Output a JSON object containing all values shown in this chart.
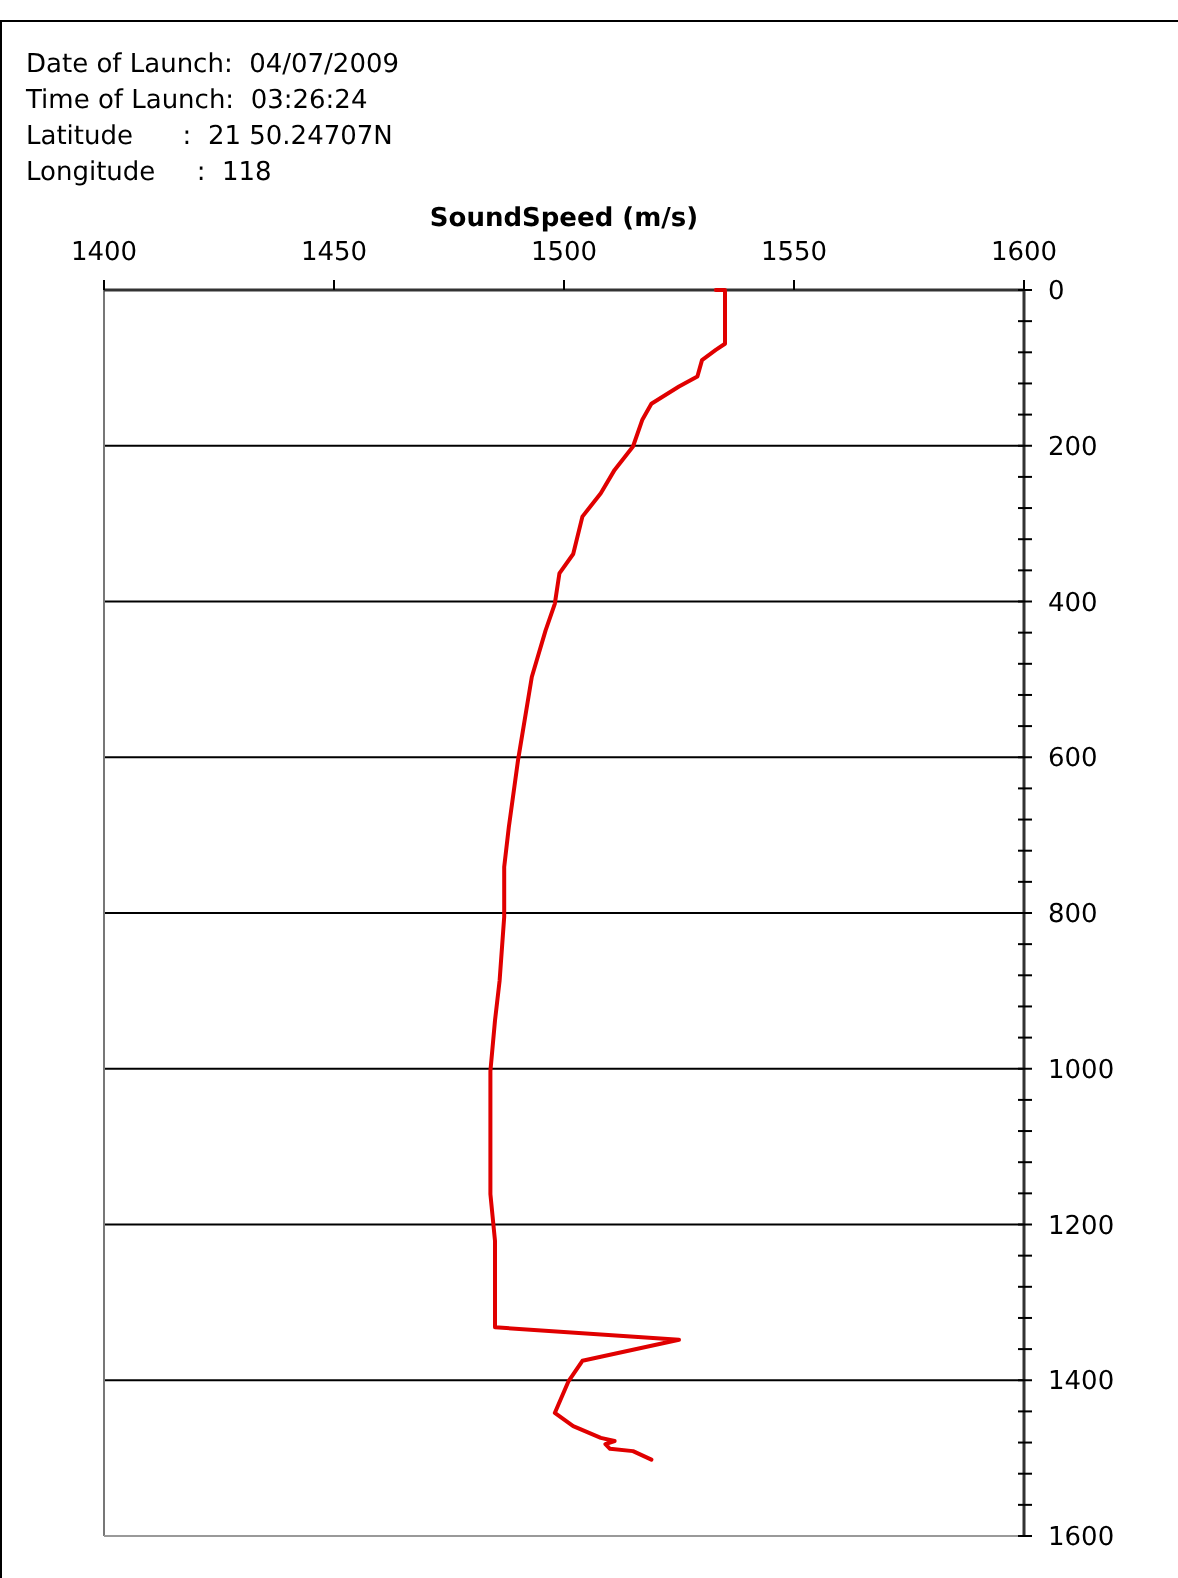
{
  "chart_data": {
    "type": "line",
    "annotations": [
      "Date of Launch:  04/07/2009",
      "Time of Launch:  03:26:24",
      "Latitude      :  21 50.24707N",
      "Longitude     :  118"
    ],
    "xlabel": "SoundSpeed (m/s)",
    "xlim": [
      1400,
      1600
    ],
    "xticks": [
      1400,
      1450,
      1500,
      1550,
      1600
    ],
    "ylim": [
      1600,
      0
    ],
    "yticks": [
      0,
      {
        "value": 40,
        "label": null
      },
      {
        "value": 80,
        "label": null
      },
      {
        "value": 120,
        "label": null
      },
      {
        "value": 160,
        "label": null
      },
      200,
      {
        "value": 240,
        "label": null
      },
      {
        "value": 280,
        "label": null
      },
      {
        "value": 320,
        "label": null
      },
      {
        "value": 360,
        "label": null
      },
      400,
      {
        "value": 440,
        "label": null
      },
      {
        "value": 480,
        "label": null
      },
      {
        "value": 520,
        "label": null
      },
      {
        "value": 560,
        "label": null
      },
      600,
      {
        "value": 640,
        "label": null
      },
      {
        "value": 680,
        "label": null
      },
      {
        "value": 720,
        "label": null
      },
      {
        "value": 760,
        "label": null
      },
      800,
      {
        "value": 840,
        "label": null
      },
      {
        "value": 880,
        "label": null
      },
      {
        "value": 920,
        "label": null
      },
      {
        "value": 960,
        "label": null
      },
      1000,
      {
        "value": 1040,
        "label": null
      },
      {
        "value": 1080,
        "label": null
      },
      {
        "value": 1120,
        "label": null
      },
      {
        "value": 1160,
        "label": null
      },
      1200,
      {
        "value": 1240,
        "label": null
      },
      {
        "value": 1280,
        "label": null
      },
      {
        "value": 1320,
        "label": null
      },
      {
        "value": 1360,
        "label": null
      },
      1400,
      {
        "value": 1440,
        "label": null
      },
      {
        "value": 1480,
        "label": null
      },
      {
        "value": 1520,
        "label": null
      },
      {
        "value": 1560,
        "label": null
      },
      1600
    ],
    "grid": "y",
    "line_style": "solid",
    "marker": "none",
    "series": [
      {
        "color": "#e00000",
        "x": [
          1533,
          1535,
          1535,
          1533,
          1530,
          1529,
          1525,
          1519,
          1517,
          1515,
          1511,
          1508,
          1504,
          1502,
          1499,
          1498,
          1496,
          1493,
          1490,
          1488,
          1487,
          1487,
          1486,
          1485,
          1484,
          1484,
          1484,
          1485,
          1485,
          1525,
          1504,
          1501,
          1498,
          1502,
          1508,
          1511,
          1509,
          1510,
          1515,
          1519
        ],
        "values": [
          0,
          0,
          69,
          77,
          90,
          111,
          124,
          146,
          167,
          201,
          231,
          261,
          291,
          339,
          364,
          403,
          437,
          497,
          604,
          690,
          741,
          805,
          887,
          938,
          1003,
          1058,
          1161,
          1221,
          1332,
          1348,
          1375,
          1401,
          1442,
          1459,
          1474,
          1478,
          1482,
          1488,
          1491,
          1502
        ]
      }
    ]
  }
}
